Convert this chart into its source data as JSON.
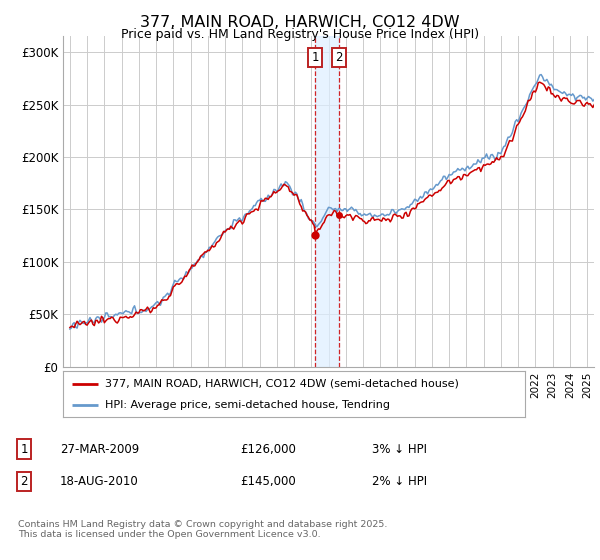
{
  "title": "377, MAIN ROAD, HARWICH, CO12 4DW",
  "subtitle": "Price paid vs. HM Land Registry's House Price Index (HPI)",
  "ylabel_ticks": [
    0,
    50000,
    100000,
    150000,
    200000,
    250000,
    300000
  ],
  "ylabel_labels": [
    "£0",
    "£50K",
    "£100K",
    "£150K",
    "£200K",
    "£250K",
    "£300K"
  ],
  "xlim": [
    1994.6,
    2025.4
  ],
  "ylim": [
    0,
    315000
  ],
  "sale1_x": 2009.23,
  "sale1_y": 126000,
  "sale1_label": "1",
  "sale2_x": 2010.63,
  "sale2_y": 145000,
  "sale2_label": "2",
  "legend_line1": "377, MAIN ROAD, HARWICH, CO12 4DW (semi-detached house)",
  "legend_line2": "HPI: Average price, semi-detached house, Tendring",
  "line_color_red": "#cc0000",
  "line_color_blue": "#6699cc",
  "grid_color": "#cccccc",
  "background_color": "#ffffff",
  "shade_color": "#ddeeff",
  "footnote": "Contains HM Land Registry data © Crown copyright and database right 2025.\nThis data is licensed under the Open Government Licence v3.0."
}
